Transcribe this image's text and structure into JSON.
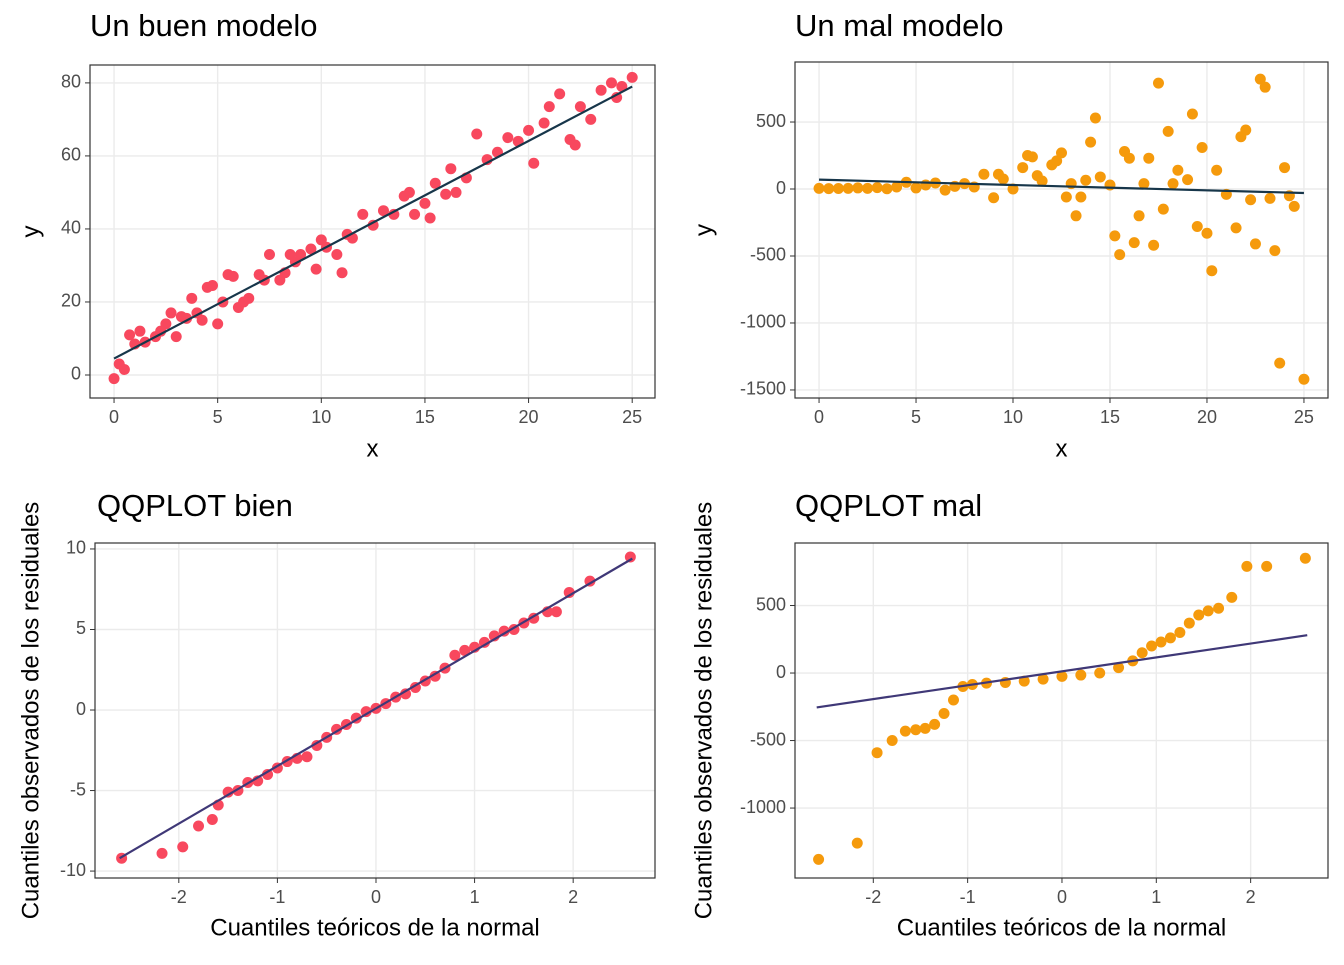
{
  "chart_data": [
    {
      "type": "scatter",
      "title": "Un buen modelo",
      "x_label": "x",
      "y_label": "y",
      "xlim": [
        -1.16,
        26.1
      ],
      "ylim": [
        -6.3,
        84.9
      ],
      "xticks": [
        0,
        5,
        10,
        15,
        20,
        25
      ],
      "yticks": [
        0,
        20,
        40,
        60,
        80
      ],
      "grid": true,
      "points": {
        "color": "#F8485E",
        "x": [
          0,
          0.25,
          0.5,
          0.75,
          1,
          1.25,
          1.5,
          2,
          2.25,
          2.5,
          2.75,
          3,
          3.25,
          3.5,
          3.75,
          4,
          4.25,
          4.5,
          4.75,
          5,
          5.25,
          5.5,
          5.75,
          6,
          6.25,
          6.5,
          7,
          7.25,
          7.5,
          8,
          8.25,
          8.5,
          8.75,
          9,
          9.5,
          9.75,
          10,
          10.25,
          10.75,
          11,
          11.25,
          11.5,
          12,
          12.5,
          13,
          13.5,
          14,
          14.25,
          14.5,
          15,
          15.25,
          15.5,
          16,
          16.25,
          16.5,
          17,
          17.5,
          18,
          18.5,
          19,
          19.5,
          20,
          20.25,
          20.75,
          21,
          21.5,
          22,
          22.25,
          22.5,
          23,
          23.5,
          24,
          24.25,
          24.5,
          25
        ],
        "y": [
          -1,
          3,
          1.5,
          11,
          8.5,
          12,
          9,
          10.5,
          12,
          14,
          17,
          10.5,
          16,
          15.5,
          21,
          17,
          15,
          24,
          24.5,
          14,
          20,
          27.5,
          27,
          18.5,
          20,
          21,
          27.5,
          26,
          33,
          26,
          28,
          33,
          31,
          33,
          34.5,
          29,
          37,
          35,
          33,
          28,
          38.5,
          37.5,
          44,
          41,
          45,
          44,
          49,
          50,
          44,
          47,
          43,
          52.5,
          49.5,
          56.5,
          50,
          54,
          66,
          59,
          61,
          65,
          64,
          67,
          58,
          69,
          73.5,
          77,
          64.5,
          63,
          73.5,
          70,
          78,
          80,
          76,
          79,
          81.5
        ]
      },
      "fit": {
        "color": "#17364A",
        "x": [
          0,
          25
        ],
        "y": [
          4.5,
          79
        ]
      }
    },
    {
      "type": "scatter",
      "title": "Un mal modelo",
      "x_label": "x",
      "y_label": "y",
      "xlim": [
        -1.24,
        26.24
      ],
      "ylim": [
        -1560,
        948
      ],
      "xticks": [
        0,
        5,
        10,
        15,
        20,
        25
      ],
      "yticks": [
        -1500,
        -1000,
        -500,
        0,
        500
      ],
      "grid": true,
      "points": {
        "color": "#F59A0C",
        "x": [
          0,
          0.5,
          1,
          1.5,
          2,
          2.5,
          3,
          3.5,
          4,
          4.5,
          5,
          5.5,
          6,
          6.5,
          7,
          7.5,
          8,
          8.5,
          9,
          9.25,
          9.5,
          10,
          10.5,
          10.75,
          11,
          11.25,
          11.5,
          12,
          12.25,
          12.5,
          12.75,
          13,
          13.25,
          13.5,
          13.75,
          14,
          14.25,
          14.5,
          15,
          15.25,
          15.5,
          15.75,
          16,
          16.25,
          16.5,
          16.75,
          17,
          17.25,
          17.5,
          17.75,
          18,
          18.25,
          18.5,
          19,
          19.25,
          19.5,
          19.75,
          20,
          20.25,
          20.5,
          21,
          21.5,
          21.75,
          22,
          22.25,
          22.5,
          22.75,
          23,
          23.25,
          23.5,
          23.75,
          24,
          24.25,
          24.5,
          25
        ],
        "y": [
          5,
          3,
          4,
          5,
          8,
          5,
          10,
          2,
          15,
          50,
          8,
          30,
          45,
          -8,
          20,
          40,
          15,
          110,
          -65,
          110,
          75,
          0,
          160,
          250,
          240,
          100,
          60,
          180,
          210,
          270,
          -60,
          40,
          -200,
          -60,
          65,
          350,
          530,
          90,
          30,
          -350,
          -490,
          280,
          230,
          -400,
          -200,
          40,
          230,
          -420,
          790,
          -150,
          430,
          40,
          140,
          70,
          560,
          -280,
          310,
          -330,
          -610,
          140,
          -40,
          -290,
          390,
          440,
          -80,
          -410,
          820,
          760,
          -70,
          -460,
          -1300,
          160,
          -50,
          -130,
          -1420
        ]
      },
      "fit": {
        "color": "#17364A",
        "x": [
          0,
          25
        ],
        "y": [
          70,
          -30
        ]
      }
    },
    {
      "type": "scatter",
      "title": "QQPLOT bien",
      "x_label": "Cuantiles teóricos de la normal",
      "y_label": "Cuantiles observados de los residuales",
      "xlim": [
        -2.85,
        2.83
      ],
      "ylim": [
        -10.43,
        10.37
      ],
      "xticks": [
        -2,
        -1,
        0,
        1,
        2
      ],
      "yticks": [
        -10,
        -5,
        0,
        5,
        10
      ],
      "grid": true,
      "points": {
        "color": "#F8485E",
        "x": [
          -2.58,
          -2.17,
          -1.96,
          -1.8,
          -1.66,
          -1.6,
          -1.5,
          -1.4,
          -1.3,
          -1.2,
          -1.1,
          -1.0,
          -0.9,
          -0.8,
          -0.7,
          -0.6,
          -0.5,
          -0.4,
          -0.3,
          -0.2,
          -0.1,
          0,
          0.1,
          0.2,
          0.3,
          0.4,
          0.5,
          0.6,
          0.7,
          0.8,
          0.9,
          1.0,
          1.1,
          1.2,
          1.3,
          1.4,
          1.5,
          1.6,
          1.74,
          1.83,
          1.96,
          2.17,
          2.58
        ],
        "y": [
          -9.2,
          -8.9,
          -8.5,
          -7.2,
          -6.8,
          -5.9,
          -5.1,
          -5.0,
          -4.5,
          -4.4,
          -4.0,
          -3.6,
          -3.2,
          -3.0,
          -2.9,
          -2.2,
          -1.7,
          -1.2,
          -0.9,
          -0.5,
          -0.1,
          0.1,
          0.4,
          0.8,
          1.0,
          1.4,
          1.8,
          2.1,
          2.6,
          3.4,
          3.7,
          3.9,
          4.2,
          4.6,
          4.9,
          5.0,
          5.4,
          5.7,
          6.1,
          6.1,
          7.3,
          8.0,
          9.5
        ]
      },
      "fit": {
        "color": "#3F3877",
        "x": [
          -2.6,
          2.6
        ],
        "y": [
          -9.2,
          9.4
        ]
      }
    },
    {
      "type": "scatter",
      "title": "QQPLOT mal",
      "x_label": "Cuantiles teóricos de la normal",
      "y_label": "Cuantiles observados de los residuales",
      "xlim": [
        -2.83,
        2.82
      ],
      "ylim": [
        -1518,
        963
      ],
      "xticks": [
        -2,
        -1,
        0,
        1,
        2
      ],
      "yticks": [
        -1000,
        -500,
        0,
        500
      ],
      "grid": true,
      "points": {
        "color": "#F59A0C",
        "x": [
          -2.58,
          -2.17,
          -1.96,
          -1.8,
          -1.66,
          -1.55,
          -1.45,
          -1.35,
          -1.25,
          -1.15,
          -1.05,
          -0.95,
          -0.8,
          -0.6,
          -0.4,
          -0.2,
          0,
          0.2,
          0.4,
          0.6,
          0.75,
          0.85,
          0.95,
          1.05,
          1.15,
          1.25,
          1.35,
          1.45,
          1.55,
          1.66,
          1.8,
          1.96,
          2.17,
          2.58
        ],
        "y": [
          -1380,
          -1260,
          -590,
          -500,
          -430,
          -420,
          -410,
          -380,
          -300,
          -200,
          -100,
          -85,
          -75,
          -70,
          -60,
          -45,
          -25,
          -15,
          0,
          40,
          90,
          150,
          200,
          230,
          260,
          300,
          370,
          430,
          460,
          480,
          560,
          790,
          790,
          850
        ]
      },
      "fit": {
        "color": "#3F3877",
        "x": [
          -2.6,
          2.6
        ],
        "y": [
          -255,
          280
        ]
      }
    }
  ]
}
